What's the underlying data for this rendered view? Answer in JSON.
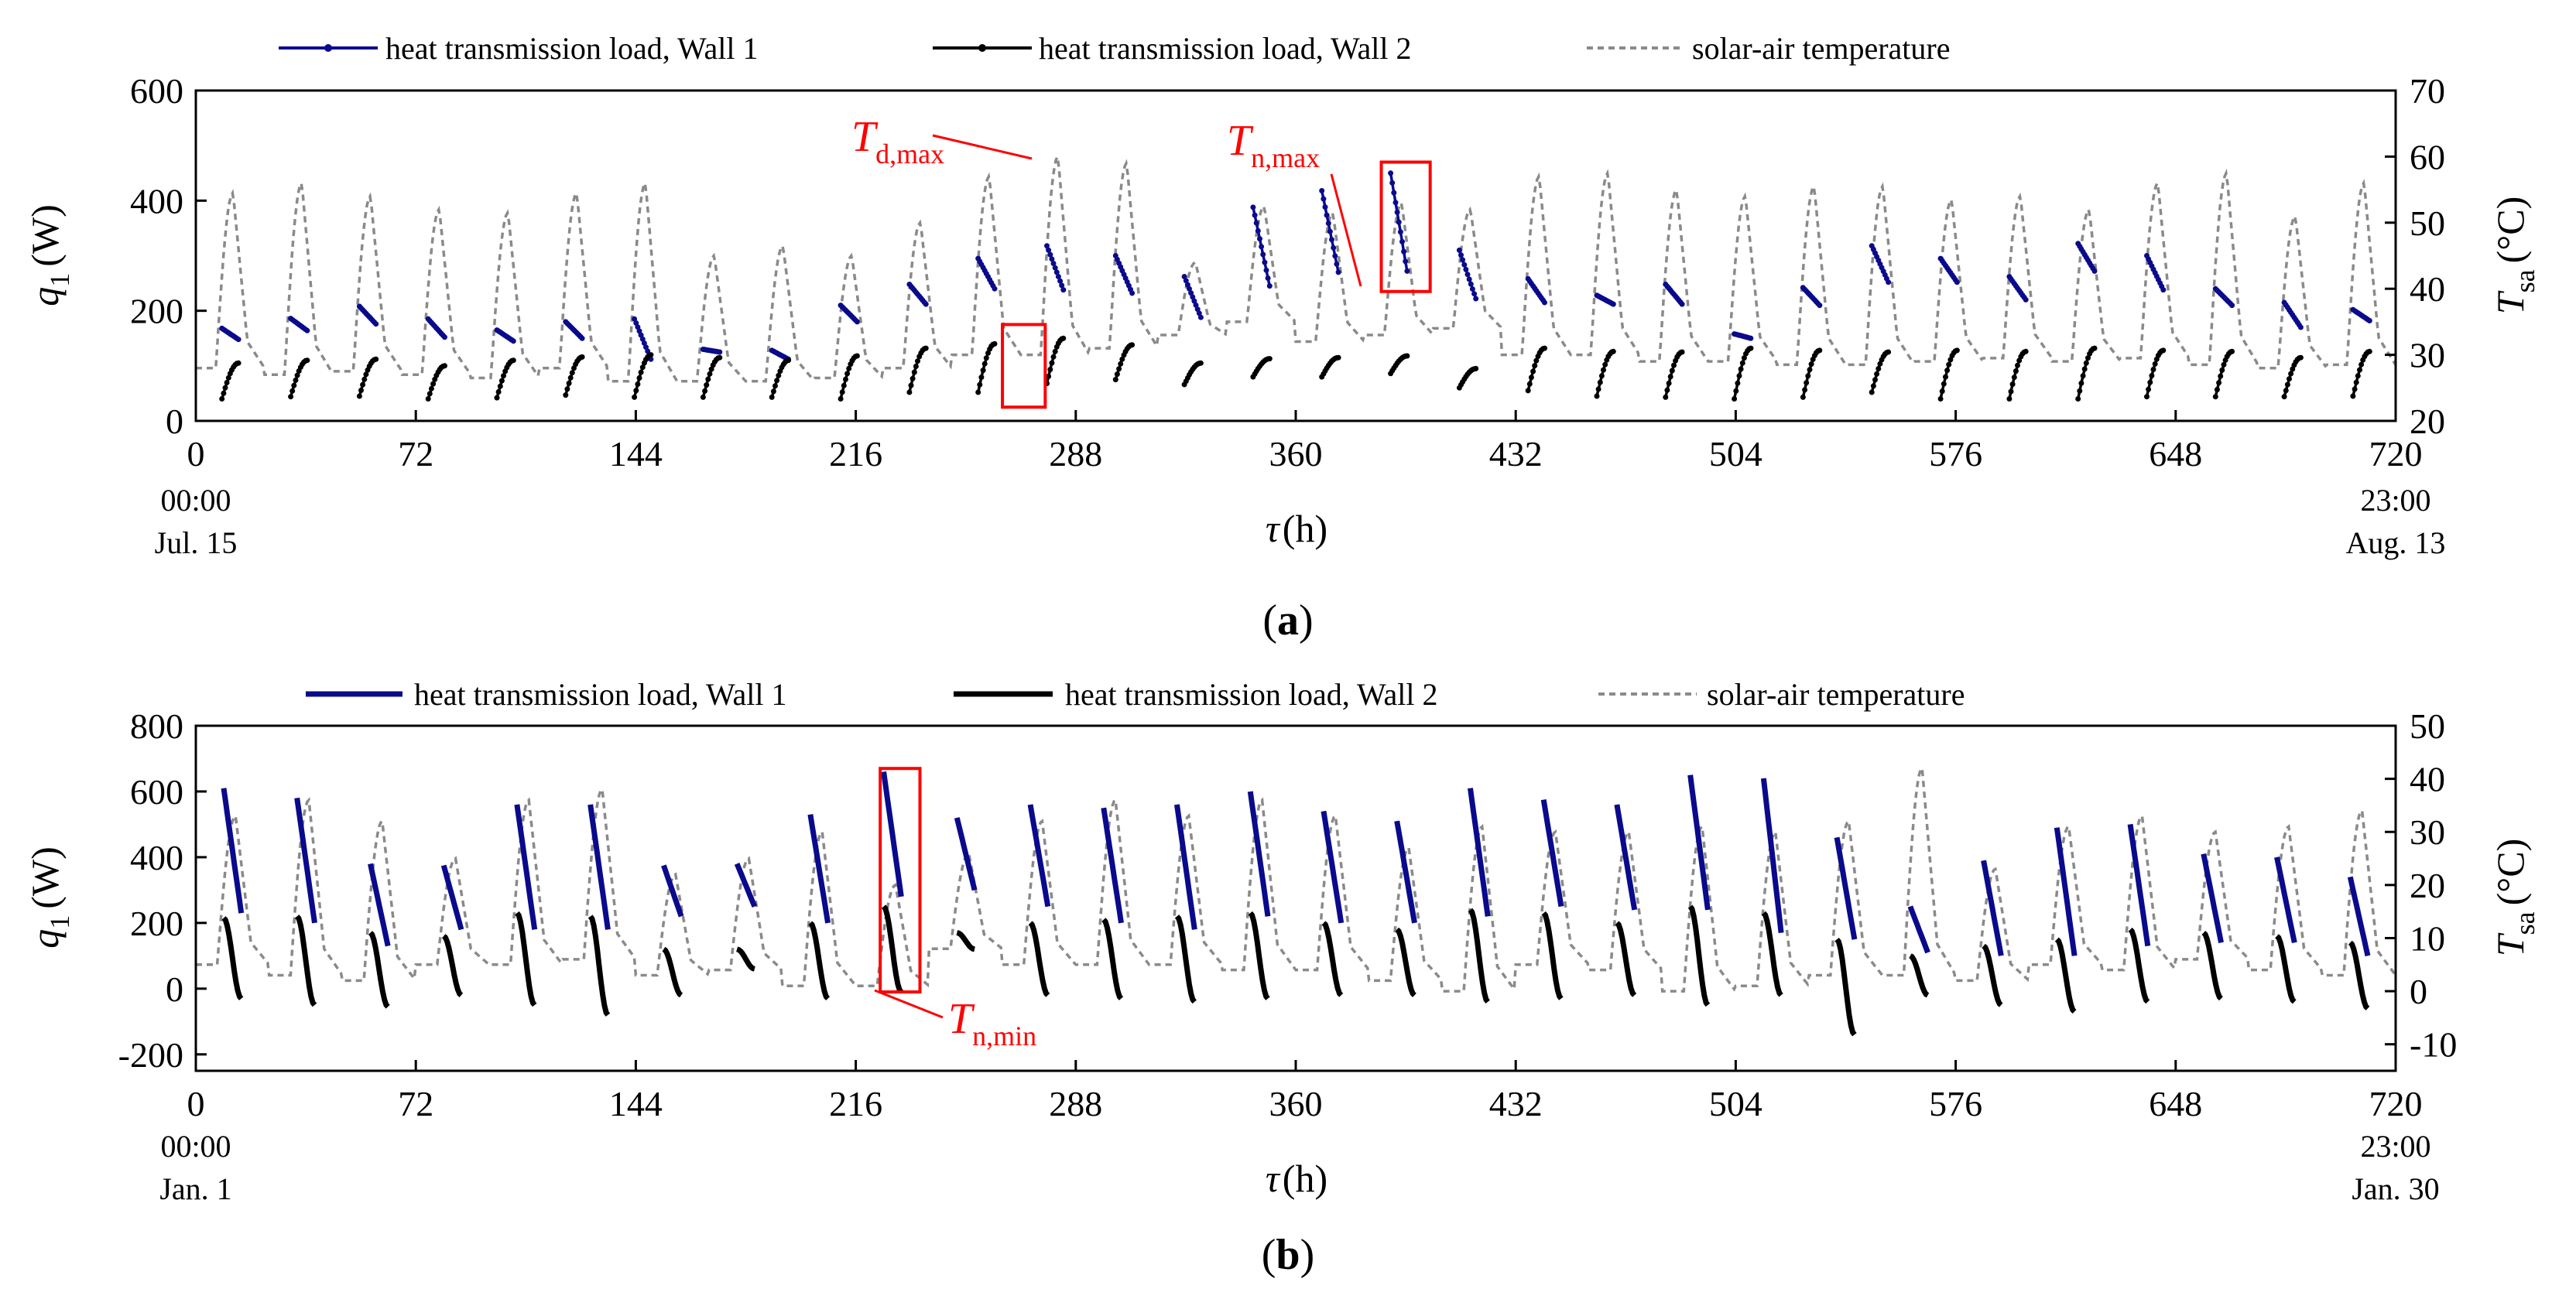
{
  "figure": {
    "panels": [
      {
        "letter": "a",
        "label_open": "(",
        "label_close": ")"
      },
      {
        "letter": "b",
        "label_open": "(",
        "label_close": ")"
      }
    ],
    "legend": {
      "wall1": "heat transmission load, Wall 1",
      "wall2": "heat transmission load, Wall 2",
      "tsa": "solar-air temperature"
    },
    "colors": {
      "wall1": "#0a0a8c",
      "wall2": "#000000",
      "tsa": "#8a8a8a",
      "annotation": "#ff0000"
    }
  },
  "chart_data": [
    {
      "type": "line",
      "id": "a",
      "xlabel_sym": "τ",
      "xlabel_unit": "(h)",
      "ylabel_sym": "q",
      "ylabel_sub": "1",
      "ylabel_unit": "(W)",
      "y2label_sym": "T",
      "y2label_sub": "sa",
      "y2label_unit": "(°C)",
      "xlim": [
        0,
        720
      ],
      "ylim": [
        0,
        600
      ],
      "y2lim": [
        20,
        70
      ],
      "xticks": [
        0,
        72,
        144,
        216,
        288,
        360,
        432,
        504,
        576,
        648,
        720
      ],
      "yticks": [
        0,
        200,
        400,
        600
      ],
      "y2ticks": [
        20,
        30,
        40,
        50,
        60,
        70
      ],
      "start_time": "00:00",
      "start_date": "Jul. 15",
      "end_time": "23:00",
      "end_date": "Aug. 13",
      "wall1_start": [
        168,
        186,
        208,
        185,
        165,
        180,
        185,
        130,
        128,
        210,
        248,
        295,
        318,
        300,
        262,
        388,
        418,
        450,
        310,
        258,
        228,
        248,
        158,
        242,
        318,
        295,
        262,
        322,
        300,
        240,
        215,
        202
      ],
      "wall1_end": [
        148,
        164,
        176,
        152,
        145,
        150,
        112,
        125,
        112,
        180,
        212,
        240,
        238,
        232,
        188,
        245,
        270,
        272,
        222,
        215,
        212,
        212,
        150,
        210,
        252,
        252,
        220,
        272,
        238,
        210,
        170,
        182
      ],
      "wall2_start": [
        40,
        44,
        45,
        40,
        42,
        47,
        43,
        43,
        43,
        40,
        52,
        52,
        68,
        75,
        66,
        80,
        80,
        86,
        60,
        55,
        45,
        43,
        40,
        43,
        52,
        40,
        40,
        40,
        44,
        44,
        44,
        45
      ],
      "wall2_peak": [
        105,
        110,
        112,
        100,
        110,
        116,
        120,
        115,
        110,
        118,
        132,
        140,
        150,
        138,
        105,
        113,
        115,
        118,
        95,
        132,
        126,
        125,
        132,
        128,
        125,
        128,
        126,
        132,
        128,
        126,
        115,
        126
      ],
      "tsa_peaks": [
        54.5,
        56,
        54,
        52,
        51.5,
        54.5,
        56,
        45,
        46.5,
        45,
        50,
        57,
        60,
        59,
        44,
        52.5,
        51.5,
        53,
        52,
        57,
        57.5,
        55,
        54,
        55.5,
        55.5,
        53.5,
        54,
        52,
        56,
        57.5,
        51,
        56
      ],
      "tsa_night": [
        28,
        27,
        27.5,
        27,
        26.5,
        28,
        26,
        26,
        26,
        26.5,
        28,
        30,
        30,
        31,
        33,
        35,
        32,
        33,
        34,
        30,
        30,
        29,
        29,
        28.5,
        28.5,
        29,
        29.5,
        29,
        29.5,
        28.5,
        28,
        28.5
      ],
      "annotations": [
        {
          "main": "T",
          "sub": "d,max",
          "x": 276,
          "y": 475
        },
        {
          "main": "T",
          "sub": "n,max",
          "x": 381,
          "y": 270
        }
      ],
      "highlight_boxes": [
        {
          "x0": 264,
          "x1": 278,
          "y0": 25,
          "y1": 175
        },
        {
          "x0": 388,
          "x1": 404,
          "y0": 235,
          "y1": 470
        }
      ]
    },
    {
      "type": "line",
      "id": "b",
      "xlabel_sym": "τ",
      "xlabel_unit": "(h)",
      "ylabel_sym": "q",
      "ylabel_sub": "1",
      "ylabel_unit": "(W)",
      "y2label_sym": "T",
      "y2label_sub": "sa",
      "y2label_unit": "(°C)",
      "xlim": [
        0,
        720
      ],
      "ylim": [
        -250,
        800
      ],
      "y2lim": [
        -15,
        50
      ],
      "xticks": [
        0,
        72,
        144,
        216,
        288,
        360,
        432,
        504,
        576,
        648,
        720
      ],
      "yticks": [
        -200,
        0,
        200,
        400,
        600,
        800
      ],
      "y2ticks": [
        -10,
        0,
        10,
        20,
        30,
        40,
        50
      ],
      "start_time": "00:00",
      "start_date": "Jan. 1",
      "end_time": "23:00",
      "end_date": "Jan. 30",
      "wall1_start": [
        610,
        580,
        380,
        375,
        560,
        560,
        375,
        380,
        530,
        660,
        520,
        560,
        550,
        560,
        600,
        540,
        510,
        610,
        575,
        560,
        650,
        640,
        460,
        250,
        390,
        490,
        500,
        410,
        400,
        340
      ],
      "wall1_end": [
        230,
        200,
        130,
        180,
        180,
        180,
        220,
        250,
        200,
        280,
        300,
        250,
        200,
        180,
        220,
        200,
        200,
        220,
        250,
        240,
        240,
        170,
        150,
        110,
        100,
        100,
        130,
        140,
        140,
        100
      ],
      "wall2_start": [
        215,
        220,
        170,
        160,
        230,
        220,
        120,
        120,
        200,
        250,
        170,
        200,
        210,
        220,
        230,
        200,
        180,
        240,
        230,
        200,
        250,
        230,
        150,
        100,
        130,
        150,
        180,
        170,
        160,
        140
      ],
      "wall2_end": [
        -30,
        -50,
        -55,
        -20,
        -50,
        -80,
        -20,
        60,
        -30,
        -10,
        120,
        -20,
        -30,
        -40,
        -30,
        -20,
        -20,
        -40,
        -30,
        -20,
        -50,
        -20,
        -140,
        -20,
        -50,
        -70,
        -40,
        -30,
        -40,
        -60
      ],
      "tsa_peaks": [
        33,
        36,
        32,
        25,
        36,
        38,
        22,
        25,
        30,
        20,
        26,
        32,
        36,
        33,
        36,
        33,
        27,
        31,
        30,
        30,
        31,
        30,
        32,
        42,
        23,
        31,
        33,
        30,
        31,
        34
      ],
      "tsa_night": [
        5,
        3,
        2,
        5,
        5,
        6,
        3,
        4,
        1,
        1,
        8,
        5,
        5,
        5,
        4,
        4,
        2,
        0,
        5,
        4,
        0,
        1,
        3,
        3,
        2,
        5,
        4,
        6,
        4,
        3
      ],
      "annotations": [
        {
          "main": "T",
          "sub": "n,min",
          "x": 250,
          "y": -170
        }
      ],
      "highlight_boxes": [
        {
          "x0": 224,
          "x1": 237,
          "y0": -10,
          "y1": 670
        }
      ]
    }
  ]
}
